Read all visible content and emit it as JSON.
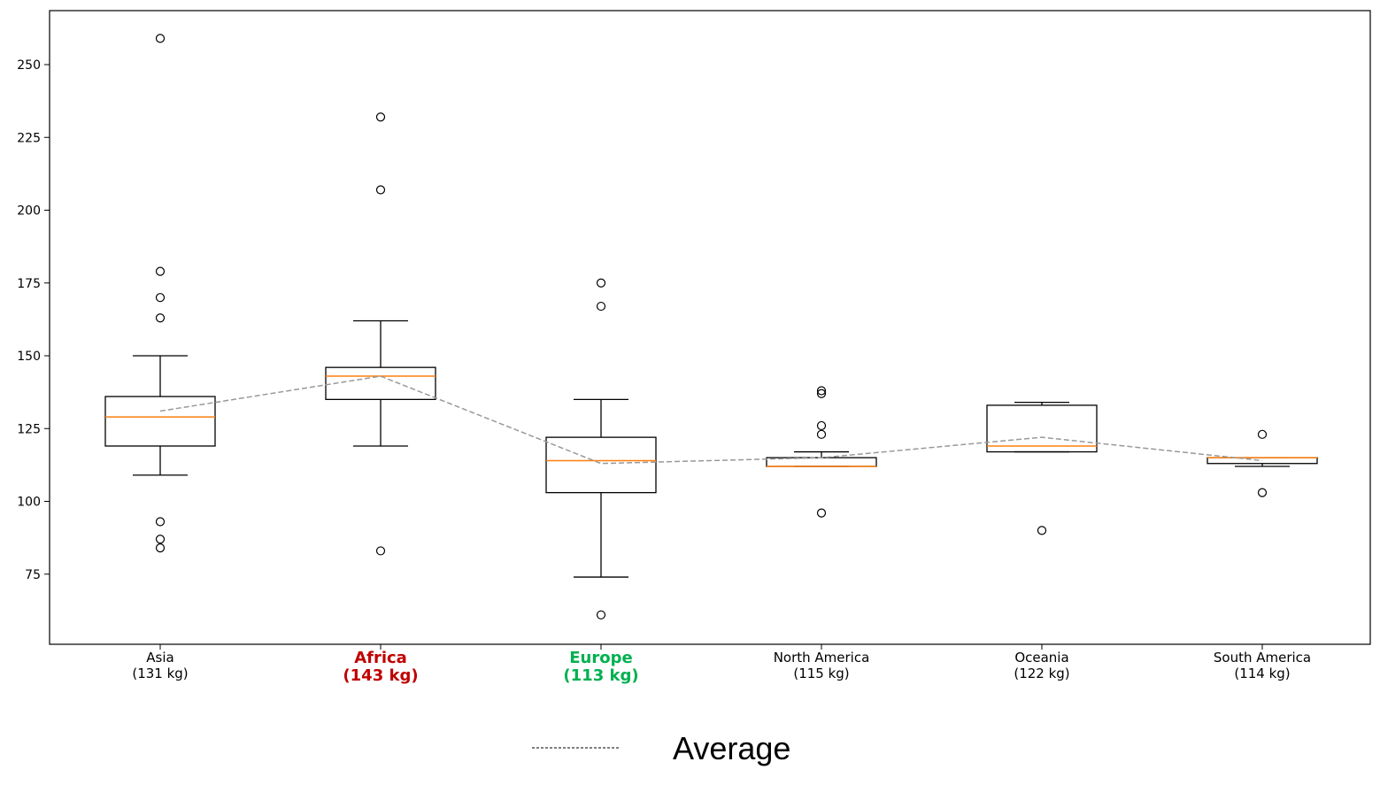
{
  "chart_data": {
    "type": "box",
    "title": "",
    "xlabel": "",
    "ylabel": "",
    "ylim": [
      52,
      270
    ],
    "yticks": [
      75,
      100,
      125,
      150,
      175,
      200,
      225,
      250
    ],
    "grid": false,
    "box_color": "#000000",
    "median_color": "#ff7f0e",
    "average_line_color": "#999999",
    "categories": [
      {
        "name": "Asia",
        "avg_label": "(131 kg)",
        "label_color": "#000000",
        "emphasis": false,
        "whisker_low": 109,
        "q1": 119,
        "median": 129,
        "q3": 136,
        "whisker_high": 150,
        "mean": 131,
        "outliers": [
          259,
          179,
          170,
          163,
          93,
          87,
          84
        ]
      },
      {
        "name": "Africa",
        "avg_label": "(143 kg)",
        "label_color": "#c00000",
        "emphasis": true,
        "whisker_low": 119,
        "q1": 135,
        "median": 143,
        "q3": 146,
        "whisker_high": 162,
        "mean": 143,
        "outliers": [
          232,
          207,
          83
        ]
      },
      {
        "name": "Europe",
        "avg_label": "(113 kg)",
        "label_color": "#00b050",
        "emphasis": true,
        "whisker_low": 74,
        "q1": 103,
        "median": 114,
        "q3": 122,
        "whisker_high": 135,
        "mean": 113,
        "outliers": [
          175,
          167,
          61
        ]
      },
      {
        "name": "North America",
        "avg_label": "(115 kg)",
        "label_color": "#000000",
        "emphasis": false,
        "whisker_low": 112,
        "q1": 112,
        "median": 112,
        "q3": 115,
        "whisker_high": 117,
        "mean": 115,
        "outliers": [
          138,
          137,
          126,
          123,
          96
        ]
      },
      {
        "name": "Oceania",
        "avg_label": "(122 kg)",
        "label_color": "#000000",
        "emphasis": false,
        "whisker_low": 117,
        "q1": 117,
        "median": 119,
        "q3": 133,
        "whisker_high": 134,
        "mean": 122,
        "outliers": [
          90
        ]
      },
      {
        "name": "South America",
        "avg_label": "(114 kg)",
        "label_color": "#000000",
        "emphasis": false,
        "whisker_low": 112,
        "q1": 113,
        "median": 115,
        "q3": 115,
        "whisker_high": 115,
        "mean": 114,
        "outliers": [
          123,
          103
        ]
      }
    ],
    "legend": {
      "label": "Average",
      "placement": "bottom-center"
    }
  }
}
